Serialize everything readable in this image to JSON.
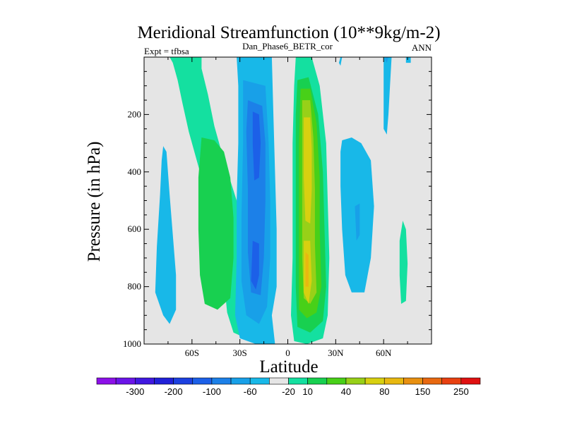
{
  "chart_data": {
    "type": "heatmap",
    "title": "Meridional Streamfunction (10**9kg/m-2)",
    "left_label": "Expt = tfbsa",
    "center_label": "Dan_Phase6_BETR_cor",
    "right_label": "ANN",
    "xlabel": "Latitude",
    "ylabel": "Pressure (in hPa)",
    "xlim": [
      -90,
      90
    ],
    "ylim": [
      0,
      1000
    ],
    "y_reversed": true,
    "x_ticks": [
      {
        "value": -60,
        "label": "60S"
      },
      {
        "value": -30,
        "label": "30S"
      },
      {
        "value": 0,
        "label": "0"
      },
      {
        "value": 30,
        "label": "30N"
      },
      {
        "value": 60,
        "label": "60N"
      }
    ],
    "y_ticks": [
      {
        "value": 200,
        "label": "200"
      },
      {
        "value": 400,
        "label": "400"
      },
      {
        "value": 600,
        "label": "600"
      },
      {
        "value": 800,
        "label": "800"
      },
      {
        "value": 1000,
        "label": "1000"
      }
    ],
    "background_color": "#e5e5e5",
    "colorbar": {
      "colors": [
        "#8c10e8",
        "#6a14e8",
        "#4018e0",
        "#2020d8",
        "#1c40e0",
        "#1c60e8",
        "#1c80e8",
        "#18a0e8",
        "#18b8e8",
        "#e5e5e5",
        "#14e0a0",
        "#18d050",
        "#48d018",
        "#98d018",
        "#d8d010",
        "#e8b810",
        "#e89010",
        "#e86810",
        "#e84010",
        "#e01010"
      ],
      "tick_labels": [
        "-300",
        "-200",
        "-100",
        "-60",
        "-20",
        "10",
        "40",
        "80",
        "150",
        "250"
      ],
      "tick_after_color_index": [
        1,
        3,
        5,
        7,
        9,
        10,
        12,
        14,
        16,
        18
      ]
    },
    "regions": [
      {
        "name": "nh-polar-weak-positive",
        "color_index": 10,
        "poly": [
          [
            -84,
            0
          ],
          [
            -74,
            0
          ],
          [
            -72,
            20
          ],
          [
            -69,
            80
          ],
          [
            -66,
            160
          ],
          [
            -62,
            260
          ],
          [
            -55,
            400
          ],
          [
            -48,
            540
          ],
          [
            -42,
            660
          ],
          [
            -40,
            780
          ],
          [
            -38,
            890
          ],
          [
            -34,
            960
          ],
          [
            -26,
            980
          ],
          [
            -20,
            940
          ],
          [
            -17,
            860
          ],
          [
            -18,
            760
          ],
          [
            -24,
            640
          ],
          [
            -32,
            500
          ],
          [
            -40,
            360
          ],
          [
            -46,
            240
          ],
          [
            -50,
            130
          ],
          [
            -54,
            40
          ],
          [
            -54,
            0
          ],
          [
            -84,
            0
          ]
        ]
      },
      {
        "name": "sh-ferrel-positive-core",
        "color_index": 11,
        "poly": [
          [
            -54,
            280
          ],
          [
            -46,
            290
          ],
          [
            -40,
            330
          ],
          [
            -36,
            420
          ],
          [
            -34,
            560
          ],
          [
            -34,
            700
          ],
          [
            -36,
            840
          ],
          [
            -44,
            880
          ],
          [
            -52,
            860
          ],
          [
            -55,
            760
          ],
          [
            -56,
            600
          ],
          [
            -56,
            420
          ]
        ]
      },
      {
        "name": "sh-polar-negative",
        "color_index": 8,
        "poly": [
          [
            -78,
            310
          ],
          [
            -76,
            330
          ],
          [
            -74,
            480
          ],
          [
            -72,
            620
          ],
          [
            -70,
            760
          ],
          [
            -70,
            880
          ],
          [
            -74,
            930
          ],
          [
            -78,
            900
          ],
          [
            -83,
            820
          ],
          [
            -82,
            660
          ],
          [
            -80,
            480
          ],
          [
            -79,
            360
          ]
        ]
      },
      {
        "name": "sh-hadley-negative-outer",
        "color_index": 8,
        "poly": [
          [
            -32,
            0
          ],
          [
            -10,
            0
          ],
          [
            -9,
            200
          ],
          [
            -8,
            400
          ],
          [
            -7,
            600
          ],
          [
            -7,
            800
          ],
          [
            -10,
            900
          ],
          [
            -8,
            1000
          ],
          [
            -20,
            1000
          ],
          [
            -30,
            980
          ],
          [
            -33,
            900
          ],
          [
            -32,
            700
          ],
          [
            -32,
            500
          ],
          [
            -31,
            300
          ],
          [
            -31,
            100
          ]
        ]
      },
      {
        "name": "sh-hadley-negative-mid",
        "color_index": 7,
        "poly": [
          [
            -28,
            80
          ],
          [
            -14,
            100
          ],
          [
            -12,
            300
          ],
          [
            -11,
            500
          ],
          [
            -11,
            700
          ],
          [
            -13,
            870
          ],
          [
            -18,
            930
          ],
          [
            -26,
            900
          ],
          [
            -29,
            780
          ],
          [
            -29,
            560
          ],
          [
            -28,
            300
          ]
        ]
      },
      {
        "name": "sh-hadley-negative-inner",
        "color_index": 6,
        "poly": [
          [
            -25,
            150
          ],
          [
            -16,
            170
          ],
          [
            -14,
            300
          ],
          [
            -14,
            500
          ],
          [
            -15,
            700
          ],
          [
            -17,
            830
          ],
          [
            -23,
            820
          ],
          [
            -25,
            680
          ],
          [
            -25,
            460
          ],
          [
            -26,
            260
          ]
        ]
      },
      {
        "name": "sh-hadley-negative-core",
        "color_index": 5,
        "poly": [
          [
            -22,
            190
          ],
          [
            -18,
            200
          ],
          [
            -17,
            300
          ],
          [
            -18,
            420
          ],
          [
            -21,
            430
          ],
          [
            -22,
            300
          ]
        ]
      },
      {
        "name": "sh-hadley-negative-core-low",
        "color_index": 5,
        "poly": [
          [
            -22,
            640
          ],
          [
            -18,
            650
          ],
          [
            -18,
            760
          ],
          [
            -20,
            810
          ],
          [
            -23,
            780
          ]
        ]
      },
      {
        "name": "nh-hadley-positive-outer",
        "color_index": 10,
        "poly": [
          [
            5,
            0
          ],
          [
            15,
            0
          ],
          [
            20,
            100
          ],
          [
            24,
            300
          ],
          [
            25,
            500
          ],
          [
            26,
            700
          ],
          [
            25,
            900
          ],
          [
            22,
            980
          ],
          [
            12,
            1000
          ],
          [
            4,
            990
          ],
          [
            2,
            900
          ],
          [
            3,
            700
          ],
          [
            3,
            500
          ],
          [
            3,
            300
          ],
          [
            4,
            100
          ]
        ]
      },
      {
        "name": "nh-hadley-positive-2",
        "color_index": 11,
        "poly": [
          [
            6,
            80
          ],
          [
            13,
            70
          ],
          [
            19,
            200
          ],
          [
            22,
            400
          ],
          [
            23,
            600
          ],
          [
            24,
            800
          ],
          [
            22,
            920
          ],
          [
            14,
            960
          ],
          [
            6,
            940
          ],
          [
            5,
            800
          ],
          [
            5,
            600
          ],
          [
            5,
            400
          ],
          [
            5,
            200
          ]
        ]
      },
      {
        "name": "nh-hadley-positive-3",
        "color_index": 12,
        "poly": [
          [
            8,
            110
          ],
          [
            14,
            110
          ],
          [
            18,
            230
          ],
          [
            20,
            420
          ],
          [
            20,
            600
          ],
          [
            21,
            800
          ],
          [
            18,
            890
          ],
          [
            12,
            910
          ],
          [
            7,
            880
          ],
          [
            7,
            700
          ],
          [
            7,
            500
          ],
          [
            7,
            300
          ]
        ]
      },
      {
        "name": "nh-hadley-positive-4",
        "color_index": 13,
        "poly": [
          [
            9,
            150
          ],
          [
            14,
            150
          ],
          [
            16,
            280
          ],
          [
            17,
            460
          ],
          [
            17,
            650
          ],
          [
            18,
            820
          ],
          [
            14,
            860
          ],
          [
            10,
            840
          ],
          [
            9,
            700
          ],
          [
            9,
            500
          ],
          [
            9,
            320
          ]
        ]
      },
      {
        "name": "nh-hadley-positive-5",
        "color_index": 14,
        "poly": [
          [
            10,
            210
          ],
          [
            14,
            210
          ],
          [
            15,
            320
          ],
          [
            15,
            460
          ],
          [
            14,
            580
          ],
          [
            11,
            570
          ],
          [
            10,
            420
          ]
        ]
      },
      {
        "name": "nh-hadley-positive-core",
        "color_index": 14,
        "poly": [
          [
            10,
            640
          ],
          [
            14,
            640
          ],
          [
            15,
            780
          ],
          [
            13,
            860
          ],
          [
            10,
            820
          ]
        ]
      },
      {
        "name": "nh-hadley-positive-peak",
        "color_index": 15,
        "poly": [
          [
            11,
            680
          ],
          [
            13,
            690
          ],
          [
            13,
            800
          ],
          [
            11,
            800
          ]
        ]
      },
      {
        "name": "nh-ferrel-negative",
        "color_index": 8,
        "poly": [
          [
            34,
            290
          ],
          [
            40,
            280
          ],
          [
            46,
            300
          ],
          [
            52,
            360
          ],
          [
            54,
            520
          ],
          [
            52,
            700
          ],
          [
            48,
            820
          ],
          [
            40,
            820
          ],
          [
            36,
            760
          ],
          [
            34,
            600
          ],
          [
            33,
            450
          ],
          [
            33,
            330
          ]
        ]
      },
      {
        "name": "nh-ferrel-negative-inner",
        "color_index": 7,
        "poly": [
          [
            42,
            520
          ],
          [
            45,
            510
          ],
          [
            45,
            620
          ],
          [
            43,
            640
          ]
        ]
      },
      {
        "name": "nh-polar-negative-top",
        "color_index": 8,
        "poly": [
          [
            60,
            0
          ],
          [
            65,
            0
          ],
          [
            64,
            100
          ],
          [
            63,
            200
          ],
          [
            62,
            270
          ],
          [
            60,
            250
          ],
          [
            60,
            150
          ]
        ]
      },
      {
        "name": "nh-upper-negative-a",
        "color_index": 8,
        "poly": [
          [
            33,
            0
          ],
          [
            34,
            0
          ],
          [
            33,
            30
          ],
          [
            32,
            20
          ]
        ]
      },
      {
        "name": "nh-upper-negative-b",
        "color_index": 8,
        "poly": [
          [
            74,
            0
          ],
          [
            77,
            0
          ],
          [
            77,
            20
          ],
          [
            74,
            20
          ]
        ]
      },
      {
        "name": "nh-polar-positive",
        "color_index": 10,
        "poly": [
          [
            72,
            570
          ],
          [
            74,
            600
          ],
          [
            75,
            720
          ],
          [
            74,
            850
          ],
          [
            71,
            860
          ],
          [
            70,
            760
          ],
          [
            70,
            640
          ]
        ]
      },
      {
        "name": "top-edge-negative",
        "color_index": 7,
        "poly": [
          [
            61,
            0
          ],
          [
            63,
            0
          ],
          [
            62,
            20
          ],
          [
            61,
            10
          ]
        ]
      }
    ]
  }
}
